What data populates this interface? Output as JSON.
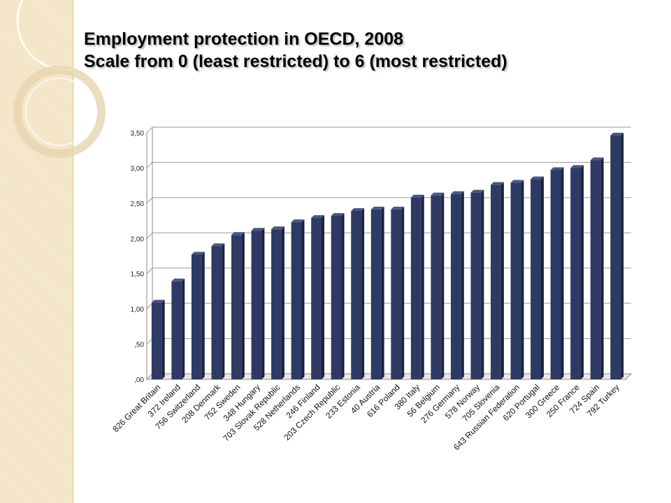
{
  "slide": {
    "title": "Employment protection in OECD, 2008",
    "subtitle": "Scale from 0 (least restricted) to 6 (most restricted)",
    "accent_colors": {
      "side_strip": "#f3e4c4",
      "bar_fill": "#2e3a63",
      "bar_top": "#4a5782",
      "bar_side": "#1a2240"
    }
  },
  "chart_data": {
    "type": "bar",
    "title": "Employment protection in OECD, 2008",
    "subtitle": "Scale from 0 (least restricted) to 6 (most restricted)",
    "xlabel": "",
    "ylabel": "",
    "ylim": [
      0,
      3.5
    ],
    "yticks": [
      0,
      0.5,
      1.0,
      1.5,
      2.0,
      2.5,
      3.0,
      3.5
    ],
    "ytick_labels": [
      ",00",
      ",50",
      "1,00",
      "1,50",
      "2,00",
      "2,50",
      "3,00",
      "3,50"
    ],
    "grid": true,
    "legend": "none",
    "categories": [
      "826 Great Britain",
      "372 Ireland",
      "756 Switzerland",
      "208 Denmark",
      "752 Sweden",
      "348 Hungary",
      "703 Slovak Republic",
      "528 Netherlands",
      "246 Finland",
      "203 Czech Republic",
      "233 Estonia",
      "40 Austria",
      "616 Poland",
      "380 Italy",
      "56 Belgium",
      "276 Germany",
      "578 Norway",
      "705 Slovenia",
      "643 Russian Federation",
      "620 Portugal",
      "300 Greece",
      "250 France",
      "724 Spain",
      "792 Turkey"
    ],
    "values": [
      1.09,
      1.39,
      1.77,
      1.89,
      2.05,
      2.11,
      2.13,
      2.23,
      2.29,
      2.32,
      2.39,
      2.41,
      2.41,
      2.58,
      2.61,
      2.63,
      2.65,
      2.76,
      2.79,
      2.84,
      2.97,
      3.0,
      3.11,
      3.46
    ]
  }
}
